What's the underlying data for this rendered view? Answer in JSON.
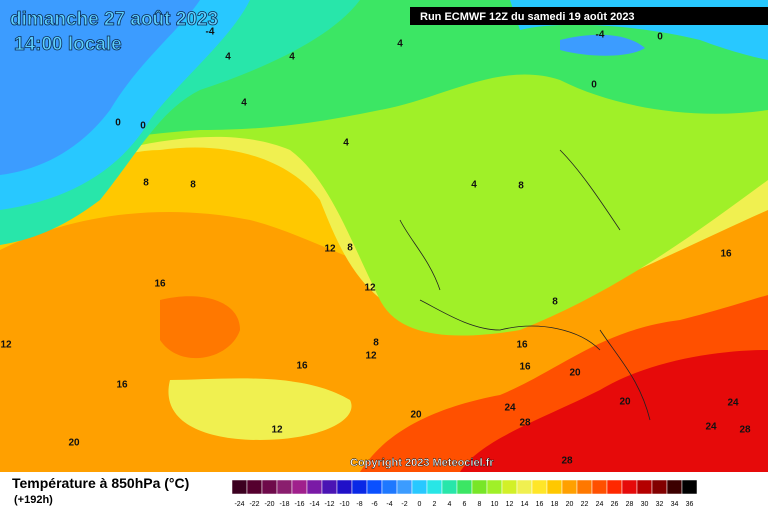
{
  "header": {
    "date": "dimanche 27 août 2023",
    "time": "14:00 locale",
    "run": "Run ECMWF 12Z du samedi 19 août 2023"
  },
  "copyright": "Copyright 2023 Meteociel.fr",
  "legend": {
    "title": "Température à 850hPa (°C)",
    "lead": "(+192h)",
    "scale": [
      {
        "value": -24,
        "color": "#3c0020"
      },
      {
        "value": -22,
        "color": "#55002e"
      },
      {
        "value": -20,
        "color": "#6e0a4a"
      },
      {
        "value": -18,
        "color": "#8a1e6e"
      },
      {
        "value": -16,
        "color": "#a0208c"
      },
      {
        "value": -14,
        "color": "#7a1aa6"
      },
      {
        "value": -12,
        "color": "#4a14b4"
      },
      {
        "value": -10,
        "color": "#2010c8"
      },
      {
        "value": -8,
        "color": "#0a28e6"
      },
      {
        "value": -6,
        "color": "#0a50ff"
      },
      {
        "value": -4,
        "color": "#1e78ff"
      },
      {
        "value": -2,
        "color": "#3c9cff"
      },
      {
        "value": 0,
        "color": "#28c8ff"
      },
      {
        "value": 2,
        "color": "#28e6e6"
      },
      {
        "value": 4,
        "color": "#28e6aa"
      },
      {
        "value": 6,
        "color": "#3ce664"
      },
      {
        "value": 8,
        "color": "#78e628"
      },
      {
        "value": 10,
        "color": "#a0f028"
      },
      {
        "value": 12,
        "color": "#d2f028"
      },
      {
        "value": 14,
        "color": "#f0f050"
      },
      {
        "value": 16,
        "color": "#ffe628"
      },
      {
        "value": 18,
        "color": "#ffc800"
      },
      {
        "value": 20,
        "color": "#ffa000"
      },
      {
        "value": 22,
        "color": "#ff7800"
      },
      {
        "value": 24,
        "color": "#ff5000"
      },
      {
        "value": 26,
        "color": "#ff2800"
      },
      {
        "value": 28,
        "color": "#e60a0a"
      },
      {
        "value": 30,
        "color": "#b40000"
      },
      {
        "value": 32,
        "color": "#820000"
      },
      {
        "value": 34,
        "color": "#3c0000"
      },
      {
        "value": 36,
        "color": "#000000"
      }
    ]
  },
  "map": {
    "contour_labels": [
      -4,
      4,
      -4,
      0,
      4,
      4,
      4,
      0,
      0,
      0,
      4,
      8,
      8,
      4,
      8,
      12,
      8,
      16,
      12,
      16,
      8,
      12,
      8,
      12,
      16,
      16,
      16,
      16,
      20,
      20,
      20,
      24,
      24,
      20,
      12,
      28,
      24,
      28,
      28
    ]
  }
}
